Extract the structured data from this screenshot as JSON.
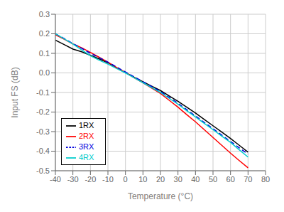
{
  "chart_data": {
    "type": "line",
    "xlabel": "Temperature (°C)",
    "ylabel": "Input FS (dB)",
    "x": [
      -40,
      -35,
      -30,
      -25,
      -20,
      -15,
      -10,
      -5,
      0,
      5,
      10,
      15,
      20,
      25,
      30,
      35,
      40,
      45,
      50,
      55,
      60,
      65,
      70
    ],
    "xlim": [
      -40,
      80
    ],
    "ylim": [
      -0.5,
      0.3
    ],
    "xticks": [
      -40,
      -30,
      -20,
      -10,
      0,
      10,
      20,
      30,
      40,
      50,
      60,
      70,
      80
    ],
    "yticks": [
      -0.5,
      -0.4,
      -0.3,
      -0.2,
      -0.1,
      {
        "value": 0,
        "label": "0.0"
      },
      0.1,
      0.2,
      0.3
    ],
    "grid": true,
    "legend": "lower left",
    "series": [
      {
        "name": "1RX",
        "color": "#000000",
        "line_style": "solid",
        "values": [
          0.168,
          0.145,
          0.122,
          0.108,
          0.09,
          0.072,
          0.052,
          0.026,
          0.002,
          -0.022,
          -0.045,
          -0.068,
          -0.09,
          -0.118,
          -0.145,
          -0.175,
          -0.205,
          -0.238,
          -0.27,
          -0.302,
          -0.335,
          -0.37,
          -0.405
        ]
      },
      {
        "name": "2RX",
        "color": "#ff0000",
        "line_style": "solid",
        "values": [
          0.195,
          0.172,
          0.148,
          0.128,
          0.105,
          0.08,
          0.055,
          0.028,
          0.002,
          -0.025,
          -0.05,
          -0.078,
          -0.105,
          -0.14,
          -0.175,
          -0.213,
          -0.25,
          -0.29,
          -0.33,
          -0.37,
          -0.41,
          -0.448,
          -0.485
        ]
      },
      {
        "name": "3RX",
        "color": "#0000dd",
        "line_style": "dashed",
        "values": [
          0.2,
          0.176,
          0.15,
          0.126,
          0.1,
          0.078,
          0.055,
          0.03,
          0.005,
          -0.02,
          -0.045,
          -0.07,
          -0.095,
          -0.125,
          -0.155,
          -0.188,
          -0.22,
          -0.253,
          -0.285,
          -0.318,
          -0.35,
          -0.383,
          -0.415
        ]
      },
      {
        "name": "4RX",
        "color": "#00cccc",
        "line_style": "solid",
        "values": [
          0.2,
          0.174,
          0.148,
          0.118,
          0.088,
          0.065,
          0.045,
          0.022,
          0.0,
          -0.025,
          -0.05,
          -0.075,
          -0.1,
          -0.13,
          -0.16,
          -0.193,
          -0.225,
          -0.258,
          -0.29,
          -0.323,
          -0.355,
          -0.393,
          -0.43
        ]
      }
    ]
  }
}
